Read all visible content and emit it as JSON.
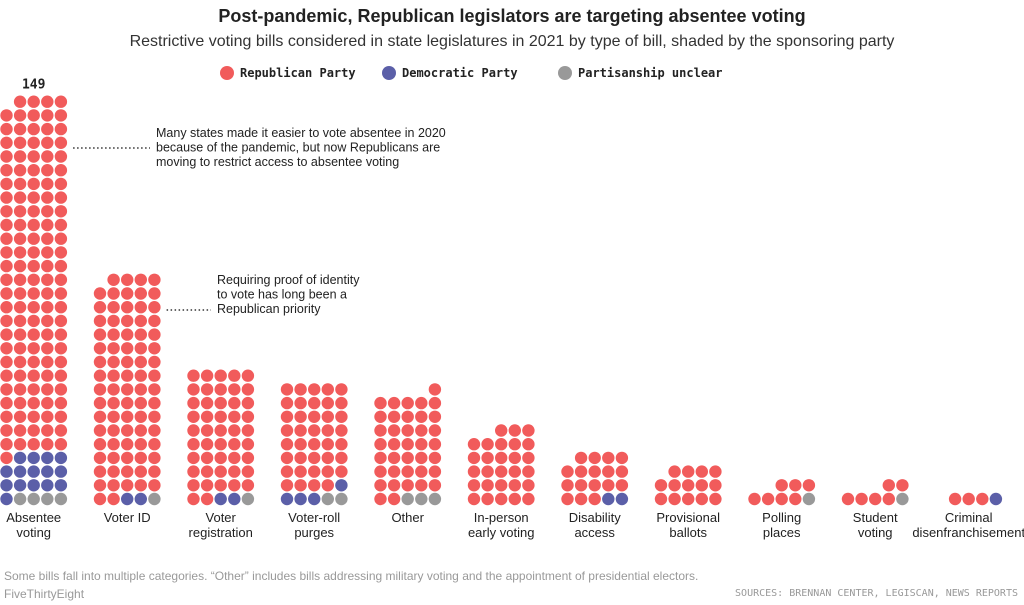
{
  "chart_data": {
    "type": "bar",
    "title": "Post-pandemic, Republican legislators are targeting absentee voting",
    "subtitle": "Restrictive voting bills considered in state legislatures in 2021 by type of bill, shaded by the sponsoring party",
    "categories": [
      [
        "Absentee",
        "voting"
      ],
      [
        "Voter ID"
      ],
      [
        "Voter",
        "registration"
      ],
      [
        "Voter-roll",
        "purges"
      ],
      [
        "Other"
      ],
      [
        "In-person",
        "early voting"
      ],
      [
        "Disability",
        "access"
      ],
      [
        "Provisional",
        "ballots"
      ],
      [
        "Polling",
        "places"
      ],
      [
        "Student",
        "voting"
      ],
      [
        "Criminal",
        "disenfranchisement"
      ]
    ],
    "series": [
      {
        "name": "Republican Party",
        "values": [
          130,
          81,
          47,
          39,
          38,
          28,
          17,
          14,
          7,
          6,
          3
        ]
      },
      {
        "name": "Democratic Party",
        "values": [
          15,
          2,
          2,
          4,
          0,
          0,
          2,
          0,
          0,
          0,
          1
        ]
      },
      {
        "name": "Partisanship unclear",
        "values": [
          4,
          1,
          1,
          2,
          3,
          0,
          0,
          0,
          1,
          1,
          0
        ]
      }
    ],
    "value_labels": [
      {
        "category": 0,
        "text": "149"
      }
    ],
    "annotations": [
      [
        "Many states made it easier to vote absentee in 2020",
        "because of the pandemic, but now Republicans are",
        "moving to restrict access to absentee voting"
      ],
      [
        "Requiring proof of identity",
        "to vote has long been a",
        "Republican priority"
      ]
    ],
    "legend_position": "top"
  },
  "colors": {
    "republican": "#f15b5b",
    "democratic": "#5b5fa8",
    "unclear": "#999999"
  },
  "footer": {
    "note": "Some bills fall into multiple categories. “Other” includes bills addressing military voting and the appointment of presidential electors.",
    "brand": "FiveThirtyEight",
    "source": "SOURCES: BRENNAN CENTER, LEGISCAN, NEWS REPORTS"
  }
}
